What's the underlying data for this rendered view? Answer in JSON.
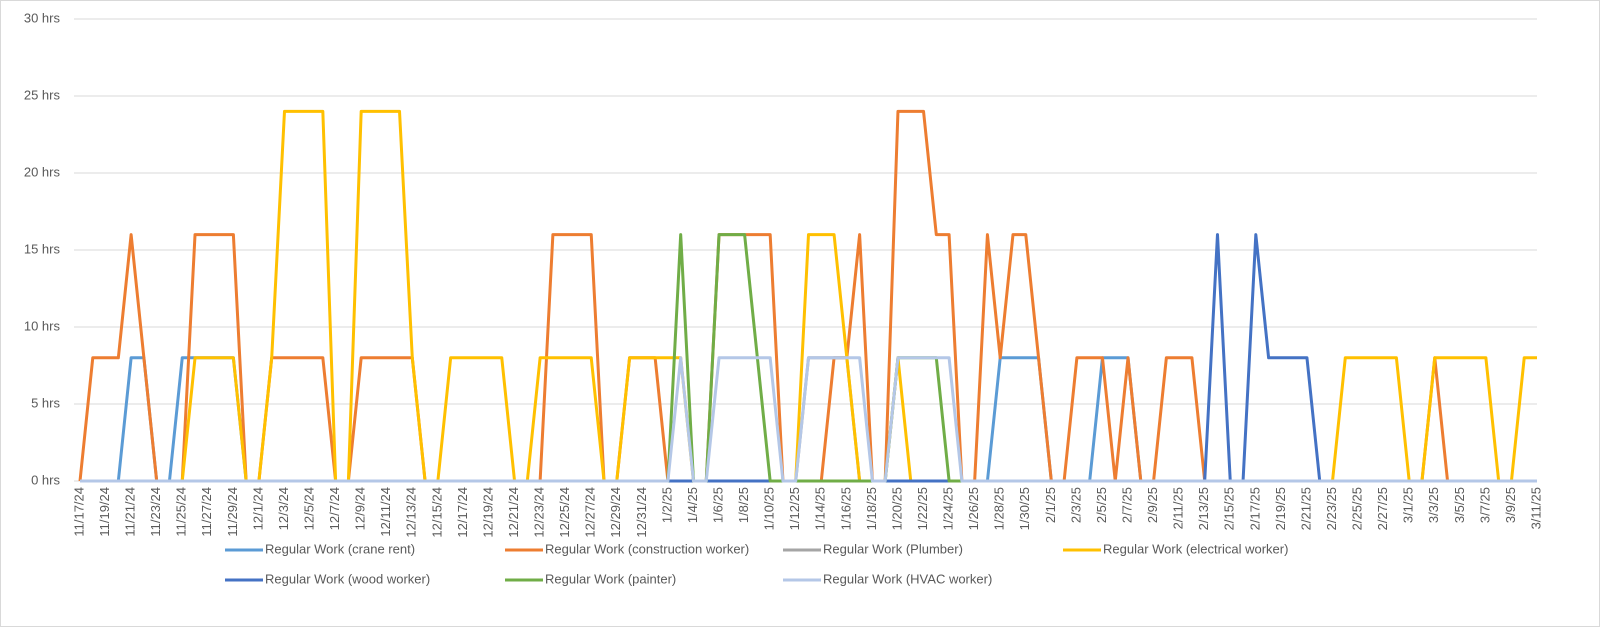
{
  "chart_data": {
    "type": "line",
    "categories": [
      "11/17/24",
      null,
      "11/19/24",
      null,
      "11/21/24",
      null,
      "11/23/24",
      null,
      "11/25/24",
      null,
      "11/27/24",
      null,
      "11/29/24",
      null,
      "12/1/24",
      null,
      "12/3/24",
      null,
      "12/5/24",
      null,
      "12/7/24",
      null,
      "12/9/24",
      null,
      "12/11/24",
      null,
      "12/13/24",
      null,
      "12/15/24",
      null,
      "12/17/24",
      null,
      "12/19/24",
      null,
      "12/21/24",
      null,
      "12/23/24",
      null,
      "12/25/24",
      null,
      "12/27/24",
      null,
      "12/29/24",
      null,
      "12/31/24",
      null,
      "1/2/25",
      null,
      "1/4/25",
      null,
      "1/6/25",
      null,
      "1/8/25",
      null,
      "1/10/25",
      null,
      "1/12/25",
      null,
      "1/14/25",
      null,
      "1/16/25",
      null,
      "1/18/25",
      null,
      "1/20/25",
      null,
      "1/22/25",
      null,
      "1/24/25",
      null,
      "1/26/25",
      null,
      "1/28/25",
      null,
      "1/30/25",
      null,
      "2/1/25",
      null,
      "2/3/25",
      null,
      "2/5/25",
      null,
      "2/7/25",
      null,
      "2/9/25",
      null,
      "2/11/25",
      null,
      "2/13/25",
      null,
      "2/15/25",
      null,
      "2/17/25",
      null,
      "2/19/25",
      null,
      "2/21/25",
      null,
      "2/23/25",
      null,
      "2/25/25",
      null,
      "2/27/25",
      null,
      "3/1/25",
      null,
      "3/3/25",
      null,
      "3/5/25",
      null,
      "3/7/25",
      null,
      "3/9/25",
      null,
      "3/11/25"
    ],
    "series": [
      {
        "name": "Regular Work (crane rent)",
        "color": "#5b9bd5",
        "values": [
          0,
          0,
          0,
          0,
          8,
          8,
          0,
          0,
          8,
          8,
          8,
          8,
          8,
          0,
          0,
          0,
          0,
          0,
          0,
          0,
          0,
          0,
          0,
          0,
          0,
          0,
          0,
          0,
          0,
          0,
          0,
          0,
          0,
          0,
          0,
          0,
          0,
          0,
          0,
          0,
          0,
          0,
          0,
          0,
          0,
          0,
          0,
          0,
          0,
          0,
          0,
          0,
          0,
          0,
          0,
          0,
          0,
          0,
          0,
          0,
          0,
          0,
          0,
          0,
          0,
          0,
          0,
          0,
          0,
          0,
          0,
          0,
          8,
          8,
          8,
          8,
          0,
          0,
          0,
          0,
          8,
          8,
          8,
          0,
          0,
          0,
          0,
          0,
          0,
          0,
          0,
          0,
          0,
          0,
          0,
          0,
          0,
          0,
          0,
          0,
          0,
          0,
          0,
          0,
          0,
          0,
          0,
          0,
          0,
          0,
          0,
          0,
          0,
          0,
          0
        ]
      },
      {
        "name": "Regular Work (construction worker)",
        "color": "#ed7d31",
        "values": [
          0,
          8,
          8,
          8,
          16,
          8,
          0,
          0,
          0,
          16,
          16,
          16,
          16,
          0,
          0,
          8,
          8,
          8,
          8,
          8,
          0,
          0,
          8,
          8,
          8,
          8,
          8,
          0,
          0,
          0,
          0,
          0,
          0,
          0,
          0,
          0,
          0,
          16,
          16,
          16,
          16,
          0,
          0,
          8,
          8,
          8,
          0,
          0,
          0,
          0,
          16,
          16,
          16,
          16,
          16,
          0,
          0,
          0,
          0,
          8,
          8,
          16,
          0,
          0,
          24,
          24,
          24,
          16,
          16,
          0,
          0,
          16,
          8,
          16,
          16,
          8,
          0,
          0,
          8,
          8,
          8,
          0,
          8,
          0,
          0,
          8,
          8,
          8,
          0,
          0,
          0,
          0,
          0,
          0,
          0,
          0,
          0,
          0,
          0,
          0,
          0,
          0,
          0,
          0,
          0,
          0,
          8,
          0,
          0,
          0,
          0,
          0,
          0,
          0,
          0
        ]
      },
      {
        "name": "Regular Work (Plumber)",
        "color": "#a5a5a5",
        "values": [
          0,
          0,
          0,
          0,
          0,
          0,
          0,
          0,
          0,
          0,
          0,
          0,
          0,
          0,
          0,
          0,
          0,
          0,
          0,
          0,
          0,
          0,
          0,
          0,
          0,
          0,
          0,
          0,
          0,
          0,
          0,
          0,
          0,
          0,
          0,
          0,
          0,
          0,
          0,
          0,
          0,
          0,
          0,
          0,
          0,
          0,
          0,
          0,
          0,
          0,
          0,
          0,
          0,
          0,
          0,
          0,
          0,
          8,
          8,
          8,
          8,
          0,
          0,
          0,
          0,
          0,
          0,
          0,
          0,
          0,
          0,
          0,
          0,
          0,
          0,
          0,
          0,
          0,
          0,
          0,
          0,
          0,
          0,
          0,
          0,
          0,
          0,
          0,
          0,
          0,
          0,
          0,
          0,
          0,
          0,
          0,
          0,
          0,
          0,
          0,
          0,
          0,
          0,
          0,
          0,
          0,
          0,
          0,
          0,
          0,
          0,
          0,
          0,
          0,
          0
        ]
      },
      {
        "name": "Regular Work (electrical worker)",
        "color": "#ffc000",
        "values": [
          0,
          0,
          0,
          0,
          0,
          0,
          0,
          0,
          0,
          8,
          8,
          8,
          8,
          0,
          0,
          8,
          24,
          24,
          24,
          24,
          0,
          0,
          24,
          24,
          24,
          24,
          8,
          0,
          0,
          8,
          8,
          8,
          8,
          8,
          0,
          0,
          8,
          8,
          8,
          8,
          8,
          0,
          0,
          8,
          8,
          8,
          8,
          8,
          0,
          0,
          0,
          0,
          0,
          0,
          0,
          0,
          0,
          16,
          16,
          16,
          8,
          0,
          0,
          0,
          8,
          0,
          0,
          0,
          0,
          0,
          0,
          0,
          0,
          0,
          0,
          0,
          0,
          0,
          0,
          0,
          0,
          0,
          0,
          0,
          0,
          0,
          0,
          0,
          0,
          0,
          0,
          0,
          0,
          0,
          0,
          0,
          0,
          0,
          0,
          8,
          8,
          8,
          8,
          8,
          0,
          0,
          8,
          8,
          8,
          8,
          8,
          0,
          0,
          8,
          8
        ]
      },
      {
        "name": "Regular Work (wood worker)",
        "color": "#4472c4",
        "values": [
          0,
          0,
          0,
          0,
          0,
          0,
          0,
          0,
          0,
          0,
          0,
          0,
          0,
          0,
          0,
          0,
          0,
          0,
          0,
          0,
          0,
          0,
          0,
          0,
          0,
          0,
          0,
          0,
          0,
          0,
          0,
          0,
          0,
          0,
          0,
          0,
          0,
          0,
          0,
          0,
          0,
          0,
          0,
          0,
          0,
          0,
          0,
          0,
          0,
          0,
          0,
          0,
          0,
          0,
          0,
          0,
          0,
          0,
          0,
          0,
          0,
          0,
          0,
          0,
          0,
          0,
          0,
          0,
          0,
          0,
          0,
          0,
          0,
          0,
          0,
          0,
          0,
          0,
          0,
          0,
          0,
          0,
          0,
          0,
          0,
          0,
          0,
          0,
          0,
          16,
          0,
          0,
          16,
          8,
          8,
          8,
          8,
          0,
          0,
          0,
          0,
          0,
          0,
          0,
          0,
          0,
          0,
          0,
          0,
          0,
          0,
          0,
          0,
          0,
          0
        ]
      },
      {
        "name": "Regular Work (painter)",
        "color": "#70ad47",
        "values": [
          0,
          0,
          0,
          0,
          0,
          0,
          0,
          0,
          0,
          0,
          0,
          0,
          0,
          0,
          0,
          0,
          0,
          0,
          0,
          0,
          0,
          0,
          0,
          0,
          0,
          0,
          0,
          0,
          0,
          0,
          0,
          0,
          0,
          0,
          0,
          0,
          0,
          0,
          0,
          0,
          0,
          0,
          0,
          0,
          0,
          0,
          0,
          16,
          0,
          0,
          16,
          16,
          16,
          8,
          0,
          0,
          0,
          0,
          0,
          0,
          0,
          0,
          0,
          0,
          8,
          8,
          8,
          8,
          0,
          0,
          0,
          0,
          0,
          0,
          0,
          0,
          0,
          0,
          0,
          0,
          0,
          0,
          0,
          0,
          0,
          0,
          0,
          0,
          0,
          0,
          0,
          0,
          0,
          0,
          0,
          0,
          0,
          0,
          0,
          0,
          0,
          0,
          0,
          0,
          0,
          0,
          0,
          0,
          0,
          0,
          0,
          0,
          0,
          0,
          0
        ]
      },
      {
        "name": "Regular Work (HVAC worker)",
        "color": "#b4c7e7",
        "values": [
          0,
          0,
          0,
          0,
          0,
          0,
          0,
          0,
          0,
          0,
          0,
          0,
          0,
          0,
          0,
          0,
          0,
          0,
          0,
          0,
          0,
          0,
          0,
          0,
          0,
          0,
          0,
          0,
          0,
          0,
          0,
          0,
          0,
          0,
          0,
          0,
          0,
          0,
          0,
          0,
          0,
          0,
          0,
          0,
          0,
          0,
          0,
          8,
          0,
          0,
          8,
          8,
          8,
          8,
          8,
          0,
          0,
          8,
          8,
          8,
          8,
          8,
          0,
          0,
          8,
          8,
          8,
          8,
          8,
          0,
          0,
          0,
          0,
          0,
          0,
          0,
          0,
          0,
          0,
          0,
          0,
          0,
          0,
          0,
          0,
          0,
          0,
          0,
          0,
          0,
          0,
          0,
          0,
          0,
          0,
          0,
          0,
          0,
          0,
          0,
          0,
          0,
          0,
          0,
          0,
          0,
          0,
          0,
          0,
          0,
          0,
          0,
          0,
          0,
          0
        ]
      }
    ],
    "ylim": [
      0,
      30
    ],
    "yticks": [
      {
        "value": 0,
        "label": "0 hrs"
      },
      {
        "value": 5,
        "label": "5 hrs"
      },
      {
        "value": 10,
        "label": "10 hrs"
      },
      {
        "value": 15,
        "label": "15 hrs"
      },
      {
        "value": 20,
        "label": "20 hrs"
      },
      {
        "value": 25,
        "label": "25 hrs"
      },
      {
        "value": 30,
        "label": "30 hrs"
      }
    ],
    "grid": true,
    "legend": "bottom"
  }
}
